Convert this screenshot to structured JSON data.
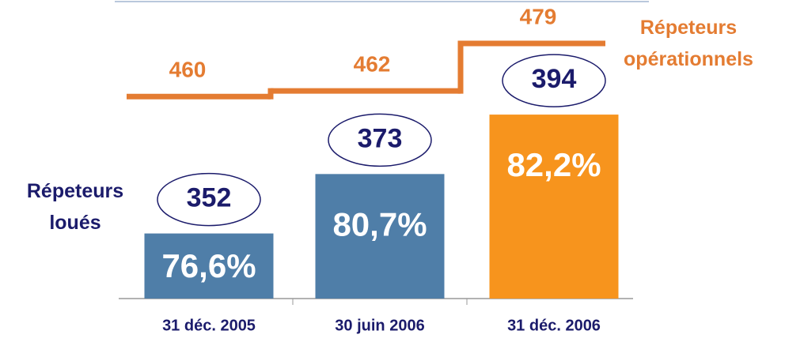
{
  "chart_data": {
    "type": "bar",
    "categories": [
      "31 déc. 2005",
      "30 juin 2006",
      "31 déc. 2006"
    ],
    "ylim": [
      329,
      401
    ],
    "y2lim": [
      440,
      490
    ],
    "series": [
      {
        "name": "Répeteurs loués",
        "color": "#1b1b6b",
        "bar_colors": [
          "#4f7ea8",
          "#4f7ea8",
          "#f7941d"
        ],
        "values": [
          352,
          373,
          394
        ],
        "shares": [
          76.6,
          80.7,
          82.2
        ],
        "share_labels": [
          "76,6%",
          "80,7%",
          "82,2%"
        ]
      },
      {
        "name": "Répeteurs opérationnels",
        "color": "#e47c32",
        "type": "step",
        "axis": "y2",
        "values": [
          460,
          462,
          479
        ]
      }
    ]
  }
}
